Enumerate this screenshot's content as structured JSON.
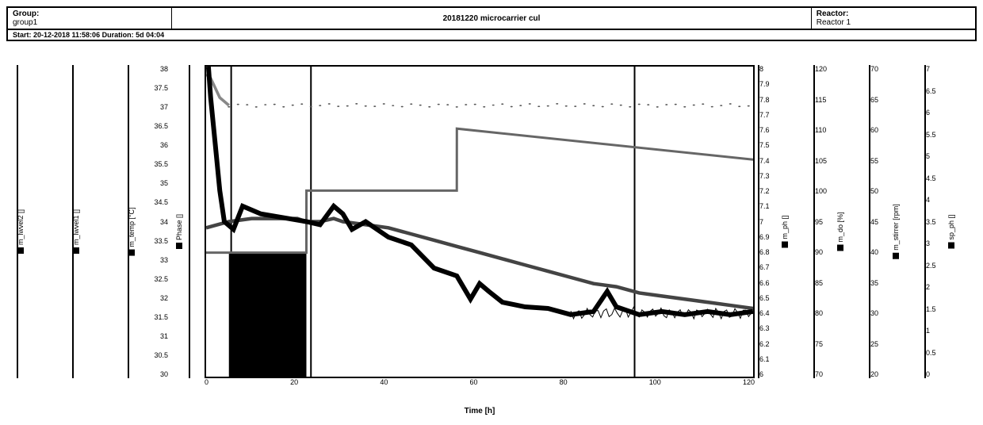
{
  "header": {
    "group_label": "Group:",
    "group_value": "group1",
    "title": "20181220 microcarrier cul",
    "reactor_label": "Reactor:",
    "reactor_value": "Reactor 1",
    "start_bar": "Start: 20-12-2018 11:58:06 Duration: 5d 04:04"
  },
  "chart": {
    "background_color": "#ffffff",
    "axis_color": "#000000",
    "x": {
      "label": "Time [h]",
      "min": 0,
      "max": 120,
      "step": 20,
      "ticks": [
        "0",
        "20",
        "40",
        "60",
        "80",
        "100",
        "120"
      ]
    },
    "left_axes": [
      {
        "label": "m_lwvel2 []",
        "ticks": [],
        "line_pos": 55
      },
      {
        "label": "m_lwvel1 []",
        "ticks": [],
        "line_pos": 55
      },
      {
        "label": "m_temp [°C]",
        "ticks": [
          "38",
          "37.5",
          "37",
          "36.5",
          "36",
          "35.5",
          "35",
          "34.5",
          "34",
          "33.5",
          "33",
          "32.5",
          "32",
          "31.5",
          "31",
          "30.5",
          "30"
        ],
        "line_pos": 55
      },
      {
        "label": "Phase []",
        "ticks": [],
        "line_pos": 18,
        "narrow": true
      }
    ],
    "right_axes": [
      {
        "label": "m_ph []",
        "ticks": [
          "8",
          "7.9",
          "7.8",
          "7.7",
          "7.6",
          "7.5",
          "7.4",
          "7.3",
          "7.2",
          "7.1",
          "7",
          "6.9",
          "6.8",
          "6.7",
          "6.6",
          "6.5",
          "6.4",
          "6.3",
          "6.2",
          "6.1",
          "6"
        ],
        "line_pos": 4
      },
      {
        "label": "m_do [%]",
        "ticks": [
          "120",
          "115",
          "110",
          "105",
          "100",
          "95",
          "90",
          "85",
          "80",
          "75",
          "70"
        ],
        "line_pos": 4
      },
      {
        "label": "m_stirrer [rpm]",
        "ticks": [
          "70",
          "65",
          "60",
          "55",
          "50",
          "45",
          "40",
          "35",
          "30",
          "25",
          "20"
        ],
        "line_pos": 4
      },
      {
        "label": "sp_ph []",
        "ticks": [
          "7",
          "6.5",
          "6",
          "5.5",
          "5",
          "4.5",
          "4",
          "3.5",
          "3",
          "2.5",
          "2",
          "1.5",
          "1",
          "0.5",
          "0"
        ],
        "line_pos": 4
      }
    ],
    "series": {
      "m_ph": {
        "color": "#000000",
        "width": 2,
        "points": [
          [
            0.5,
            8.0
          ],
          [
            1,
            7.8
          ],
          [
            2,
            7.5
          ],
          [
            3,
            7.2
          ],
          [
            4,
            7.0
          ],
          [
            6,
            6.95
          ],
          [
            8,
            7.1
          ],
          [
            12,
            7.05
          ],
          [
            18,
            7.02
          ],
          [
            22,
            7.0
          ],
          [
            25,
            6.98
          ],
          [
            28,
            7.1
          ],
          [
            30,
            7.05
          ],
          [
            32,
            6.95
          ],
          [
            35,
            7.0
          ],
          [
            40,
            6.9
          ],
          [
            45,
            6.85
          ],
          [
            50,
            6.7
          ],
          [
            55,
            6.65
          ],
          [
            58,
            6.5
          ],
          [
            60,
            6.6
          ],
          [
            62,
            6.55
          ],
          [
            65,
            6.48
          ],
          [
            70,
            6.45
          ],
          [
            75,
            6.44
          ],
          [
            80,
            6.4
          ],
          [
            85,
            6.42
          ],
          [
            88,
            6.55
          ],
          [
            90,
            6.45
          ],
          [
            95,
            6.4
          ],
          [
            100,
            6.42
          ],
          [
            105,
            6.4
          ],
          [
            110,
            6.42
          ],
          [
            115,
            6.4
          ],
          [
            120,
            6.42
          ]
        ]
      },
      "m_do": {
        "color": "#444444",
        "width": 1.5,
        "points": [
          [
            0,
            94
          ],
          [
            5,
            95
          ],
          [
            10,
            95.5
          ],
          [
            15,
            95.5
          ],
          [
            20,
            95.5
          ],
          [
            22,
            95
          ],
          [
            25,
            95
          ],
          [
            28,
            95.5
          ],
          [
            30,
            95
          ],
          [
            35,
            94.5
          ],
          [
            40,
            94
          ],
          [
            45,
            93
          ],
          [
            50,
            92
          ],
          [
            55,
            91
          ],
          [
            60,
            90
          ],
          [
            65,
            89
          ],
          [
            70,
            88
          ],
          [
            75,
            87
          ],
          [
            80,
            86
          ],
          [
            85,
            85
          ],
          [
            90,
            84.5
          ],
          [
            95,
            83.5
          ],
          [
            100,
            83
          ],
          [
            105,
            82.5
          ],
          [
            110,
            82
          ],
          [
            115,
            81.5
          ],
          [
            120,
            81
          ]
        ]
      },
      "m_temp": {
        "color": "#888888",
        "width": 1.2,
        "points": [
          [
            0,
            37.8
          ],
          [
            1,
            37.7
          ],
          [
            3,
            37.2
          ],
          [
            5,
            37.0
          ],
          [
            120,
            37.0
          ]
        ],
        "render_as_dots_after": 5
      },
      "m_stirrer": {
        "color": "#666666",
        "width": 1,
        "points": [
          [
            0,
            40
          ],
          [
            22,
            40
          ],
          [
            22.01,
            50
          ],
          [
            55,
            50
          ],
          [
            55.01,
            60
          ],
          [
            120,
            55
          ]
        ]
      },
      "phase_bars": {
        "color": "#000000",
        "regions": [
          [
            5,
            7
          ],
          [
            6.8,
            8.5
          ],
          [
            8.3,
            9.5
          ],
          [
            9.2,
            22
          ]
        ],
        "y0": 30,
        "y1": 33.2,
        "y1_narrow": 33.2
      },
      "vlines": {
        "color": "#000000",
        "width": 2,
        "x": [
          5.5,
          23,
          94
        ]
      }
    }
  }
}
